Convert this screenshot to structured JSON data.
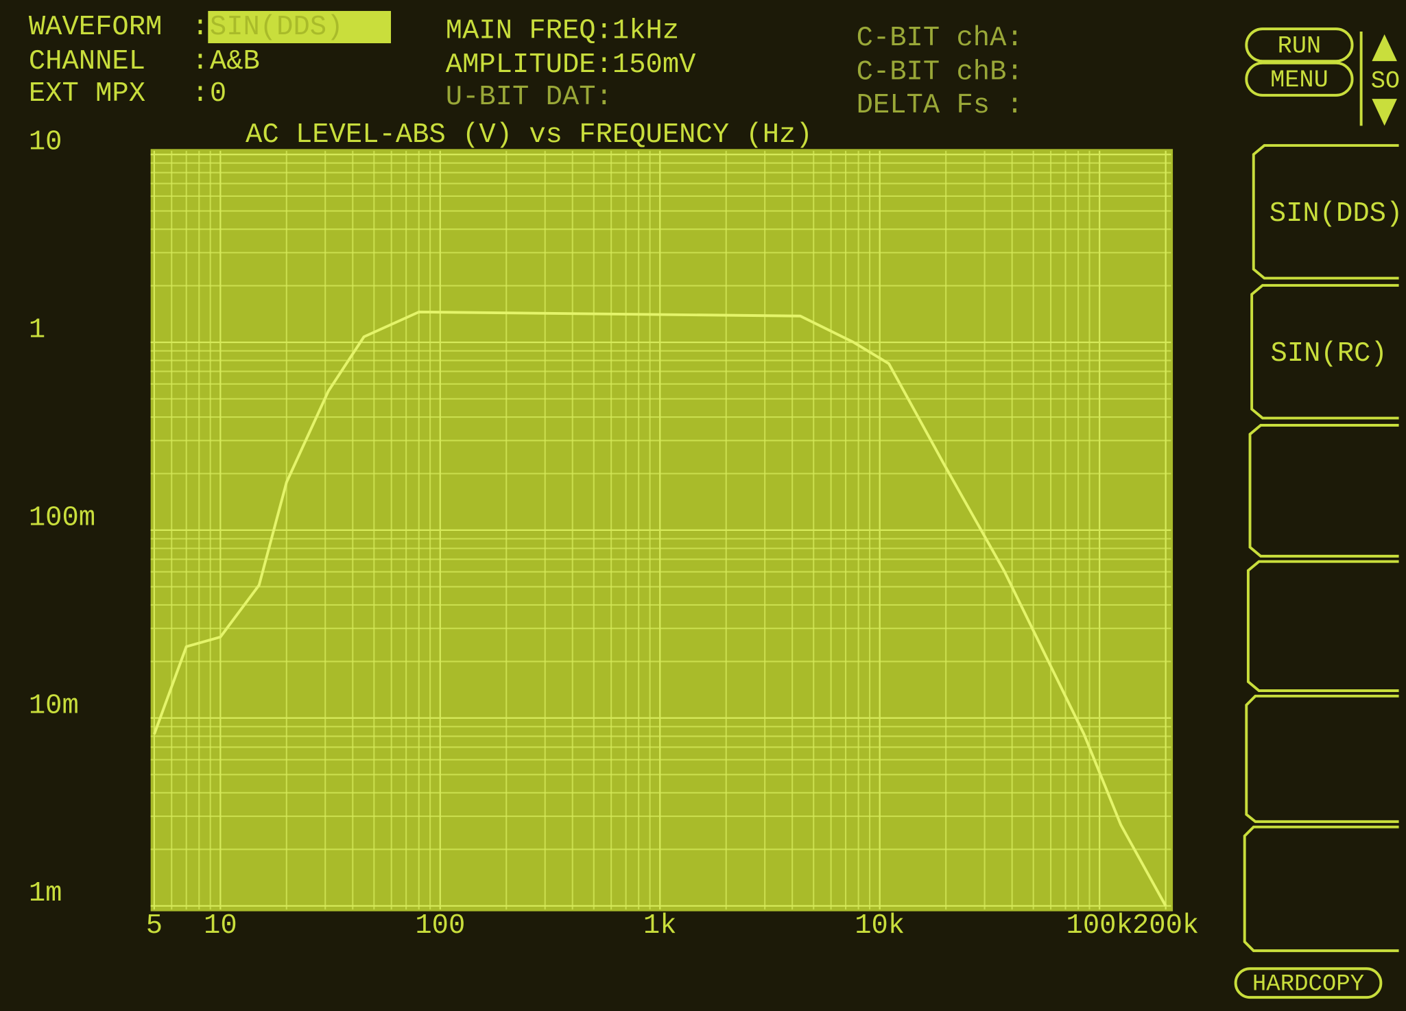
{
  "header": {
    "fields": [
      {
        "label": "WAVEFORM",
        "colon": ":",
        "value": "SIN(DDS)"
      },
      {
        "label": "CHANNEL",
        "colon": ":",
        "value": "A&B"
      },
      {
        "label": "EXT MPX",
        "colon": ":",
        "value": "0"
      }
    ],
    "status": [
      "MAIN FREQ:1kHz",
      "AMPLITUDE:150mV",
      "U-BIT DAT:"
    ],
    "cbits": [
      "C-BIT chA:",
      "C-BIT chB:",
      "DELTA Fs :"
    ]
  },
  "buttons": {
    "run": "RUN",
    "menu": "MENU",
    "side": "SO",
    "hardcopy": "HARDCOPY"
  },
  "softkeys": [
    "SIN(DDS)",
    "SIN(RC)"
  ],
  "chart_data": {
    "type": "line",
    "title": "AC LEVEL-ABS (V) vs FREQUENCY (Hz)",
    "x": [
      5,
      7,
      10,
      15,
      20,
      31,
      45,
      80,
      4350,
      7600,
      11000,
      19500,
      37000,
      85000,
      125000,
      200000
    ],
    "values": [
      0.0082,
      0.024,
      0.027,
      0.051,
      0.18,
      0.55,
      1.07,
      1.45,
      1.38,
      1.0,
      0.77,
      0.227,
      0.06,
      0.0082,
      0.0027,
      0.001
    ],
    "color": "#e4f46a",
    "xlog": true,
    "ylog": true,
    "grid": true,
    "minor_grid": true,
    "xlim": [
      5,
      200000
    ],
    "ylim": [
      0.001,
      10
    ],
    "xticks": [
      5,
      10,
      100,
      {
        "value": 1000,
        "label": "1k"
      },
      {
        "value": 10000,
        "label": "10k"
      },
      {
        "value": 100000,
        "label": "100k"
      },
      {
        "value": 200000,
        "label": "200k"
      }
    ],
    "yticks": [
      10,
      1,
      {
        "value": 0.1,
        "label": "100m"
      },
      {
        "value": 0.01,
        "label": "10m"
      },
      {
        "value": 0.001,
        "label": "1m"
      }
    ]
  }
}
